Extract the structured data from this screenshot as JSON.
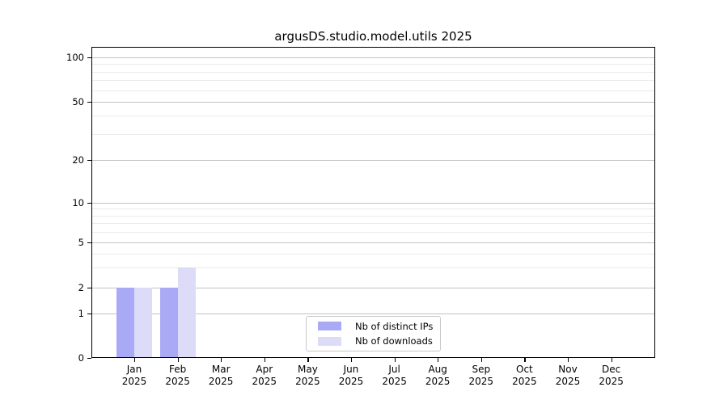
{
  "title": "argusDS.studio.model.utils 2025",
  "colors": {
    "distinct_ips": "#a9a9f6",
    "downloads": "#dcdcf8",
    "grid_major": "#c3c3c3",
    "grid_minor": "#eaeaea",
    "axis": "#000000"
  },
  "chart_data": {
    "type": "bar",
    "title": "argusDS.studio.model.utils 2025",
    "categories": [
      "Jan",
      "Feb",
      "Mar",
      "Apr",
      "May",
      "Jun",
      "Jul",
      "Aug",
      "Sep",
      "Oct",
      "Nov",
      "Dec"
    ],
    "category_year": "2025",
    "series": [
      {
        "name": "Nb of distinct IPs",
        "color": "#a9a9f6",
        "values": [
          2,
          2,
          0,
          0,
          0,
          0,
          0,
          0,
          0,
          0,
          0,
          0
        ]
      },
      {
        "name": "Nb of downloads",
        "color": "#dcdcf8",
        "values": [
          2,
          3,
          0,
          0,
          0,
          0,
          0,
          0,
          0,
          0,
          0,
          0
        ]
      }
    ],
    "xlabel": "",
    "ylabel": "",
    "yaxis": {
      "scale": "symlog",
      "ticks": [
        100,
        50,
        20,
        10,
        5,
        2,
        1,
        0
      ],
      "minor_ticks": [
        3,
        4,
        6,
        7,
        8,
        9,
        30,
        40,
        60,
        70,
        80,
        90
      ],
      "ylim": [
        0,
        117
      ]
    },
    "grid": true,
    "legend": {
      "position": "bottom-center"
    }
  }
}
